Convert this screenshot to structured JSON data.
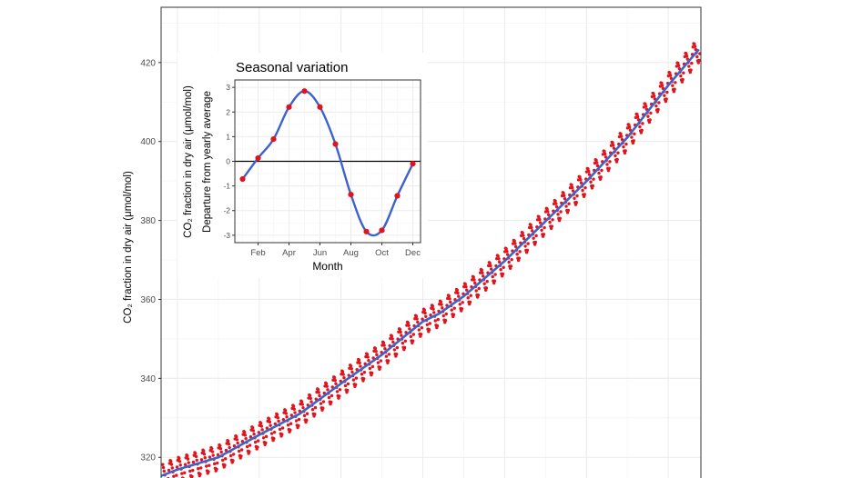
{
  "colors": {
    "points": "#e0141c",
    "trend": "#3d62c9",
    "grid": "#ececec",
    "frame": "#333333",
    "tick_text": "#4d4d4d",
    "zero_line": "#000000"
  },
  "chart_data": [
    {
      "type": "line",
      "role": "main",
      "title": "",
      "xlabel": "",
      "ylabel": "CO₂ fraction in dry air (μmol/mol)",
      "y_ticks": [
        320,
        340,
        360,
        380,
        400,
        420
      ],
      "y_tick_labels": [
        "320",
        "340",
        "360",
        "380",
        "400",
        "420"
      ],
      "ylim": [
        312,
        434
      ],
      "x_range": [
        1958,
        2024
      ],
      "grid": true,
      "series": [
        {
          "kind": "monthly_points",
          "x_start": 1958.2,
          "x_end": 2023.9,
          "seasonal_amplitude": 3.0
        },
        {
          "kind": "trend_line",
          "x": [
            1958,
            1960,
            1965,
            1970,
            1975,
            1980,
            1985,
            1990,
            1992,
            1995,
            2000,
            2005,
            2010,
            2015,
            2020,
            2023.9
          ],
          "y": [
            315.3,
            316.9,
            320.0,
            325.7,
            331.1,
            338.7,
            346.0,
            354.4,
            356.4,
            360.8,
            369.7,
            379.8,
            389.9,
            401.0,
            414.2,
            423.7
          ]
        }
      ]
    },
    {
      "type": "line",
      "role": "inset",
      "title": "Seasonal variation",
      "xlabel": "Month",
      "ylabel_line1": "CO₂ fraction in dry air (μmol/mol)",
      "ylabel_line2": "Departure from yearly average",
      "x_ticks": [
        "Feb",
        "Apr",
        "Jun",
        "Aug",
        "Oct",
        "Dec"
      ],
      "x_tick_months": [
        2,
        4,
        6,
        8,
        10,
        12
      ],
      "y_ticks": [
        -3,
        -2,
        -1,
        0,
        1,
        2,
        3
      ],
      "y_tick_labels": [
        "-3",
        "-2",
        "-1",
        "0",
        "1",
        "2",
        "3"
      ],
      "ylim": [
        -3.3,
        3.3
      ],
      "xlim": [
        0.5,
        12.5
      ],
      "grid": true,
      "points": {
        "month": [
          1,
          2,
          3,
          4,
          5,
          6,
          7,
          8,
          9,
          10,
          11,
          12
        ],
        "departure": [
          -0.72,
          0.13,
          0.9,
          2.2,
          2.85,
          2.2,
          0.7,
          -1.35,
          -2.85,
          -2.8,
          -1.4,
          -0.1
        ]
      }
    }
  ]
}
